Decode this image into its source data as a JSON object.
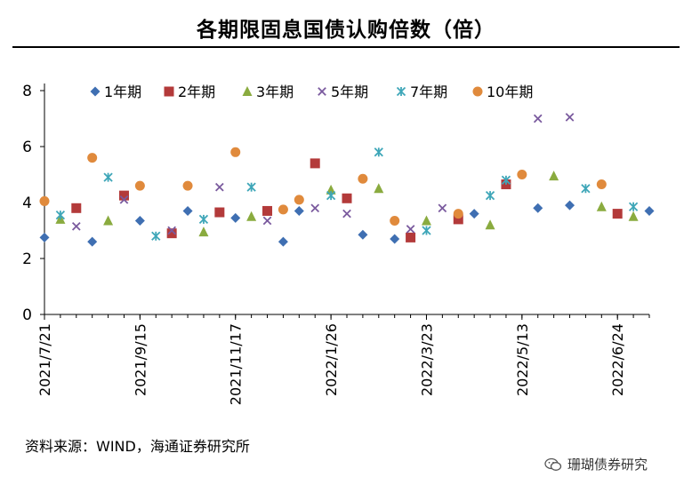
{
  "title": "各期限固息国债认购倍数（倍）",
  "source": "资料来源：WIND，海通证券研究所",
  "watermark": "珊瑚债券研究",
  "watermark_icon": "wechat-icon",
  "chart_data": {
    "type": "scatter",
    "ylim": [
      0,
      8
    ],
    "y_ticks": [
      0,
      2,
      4,
      6,
      8
    ],
    "x_tick_labels": [
      "2021/7/21",
      "2021/9/15",
      "2021/11/17",
      "2022/1/26",
      "2022/3/23",
      "2022/5/13",
      "2022/6/24"
    ],
    "x_tick_index": [
      0,
      6,
      12,
      18,
      24,
      30,
      36
    ],
    "x_index_max": 38,
    "legend_position": "top",
    "series": [
      {
        "name": "1年期",
        "marker": "diamond",
        "color": "#3f6fb2",
        "points": [
          [
            0,
            2.75
          ],
          [
            3,
            2.6
          ],
          [
            6,
            3.35
          ],
          [
            9,
            3.7
          ],
          [
            12,
            3.45
          ],
          [
            15,
            2.6
          ],
          [
            16,
            3.7
          ],
          [
            20,
            2.85
          ],
          [
            22,
            2.7
          ],
          [
            27,
            3.6
          ],
          [
            31,
            3.8
          ],
          [
            33,
            3.9
          ],
          [
            38,
            3.7
          ]
        ]
      },
      {
        "name": "2年期",
        "marker": "square",
        "color": "#b33a3a",
        "points": [
          [
            2,
            3.8
          ],
          [
            5,
            4.25
          ],
          [
            8,
            2.9
          ],
          [
            11,
            3.65
          ],
          [
            14,
            3.7
          ],
          [
            17,
            5.4
          ],
          [
            19,
            4.15
          ],
          [
            23,
            2.75
          ],
          [
            26,
            3.4
          ],
          [
            29,
            4.65
          ],
          [
            36,
            3.6
          ]
        ]
      },
      {
        "name": "3年期",
        "marker": "triangle",
        "color": "#8aab3f",
        "points": [
          [
            1,
            3.4
          ],
          [
            4,
            3.35
          ],
          [
            10,
            2.95
          ],
          [
            13,
            3.5
          ],
          [
            18,
            4.45
          ],
          [
            21,
            4.5
          ],
          [
            24,
            3.35
          ],
          [
            28,
            3.2
          ],
          [
            32,
            4.95
          ],
          [
            35,
            3.85
          ],
          [
            37,
            3.5
          ]
        ]
      },
      {
        "name": "5年期",
        "marker": "x",
        "color": "#7a5a9e",
        "points": [
          [
            2,
            3.15
          ],
          [
            5,
            4.1
          ],
          [
            8,
            3.0
          ],
          [
            11,
            4.55
          ],
          [
            14,
            3.35
          ],
          [
            17,
            3.8
          ],
          [
            19,
            3.6
          ],
          [
            23,
            3.05
          ],
          [
            25,
            3.8
          ],
          [
            31,
            7.0
          ],
          [
            33,
            7.05
          ]
        ]
      },
      {
        "name": "7年期",
        "marker": "star",
        "color": "#3ea6b8",
        "points": [
          [
            1,
            3.55
          ],
          [
            4,
            4.9
          ],
          [
            7,
            2.8
          ],
          [
            10,
            3.4
          ],
          [
            13,
            4.55
          ],
          [
            18,
            4.25
          ],
          [
            21,
            5.8
          ],
          [
            24,
            3.0
          ],
          [
            28,
            4.25
          ],
          [
            29,
            4.8
          ],
          [
            34,
            4.5
          ],
          [
            37,
            3.85
          ]
        ]
      },
      {
        "name": "10年期",
        "marker": "circle",
        "color": "#e08a3c",
        "points": [
          [
            0,
            4.05
          ],
          [
            3,
            5.6
          ],
          [
            6,
            4.6
          ],
          [
            9,
            4.6
          ],
          [
            12,
            5.8
          ],
          [
            15,
            3.75
          ],
          [
            16,
            4.1
          ],
          [
            20,
            4.85
          ],
          [
            22,
            3.35
          ],
          [
            26,
            3.6
          ],
          [
            30,
            5.0
          ],
          [
            35,
            4.65
          ]
        ]
      }
    ]
  }
}
